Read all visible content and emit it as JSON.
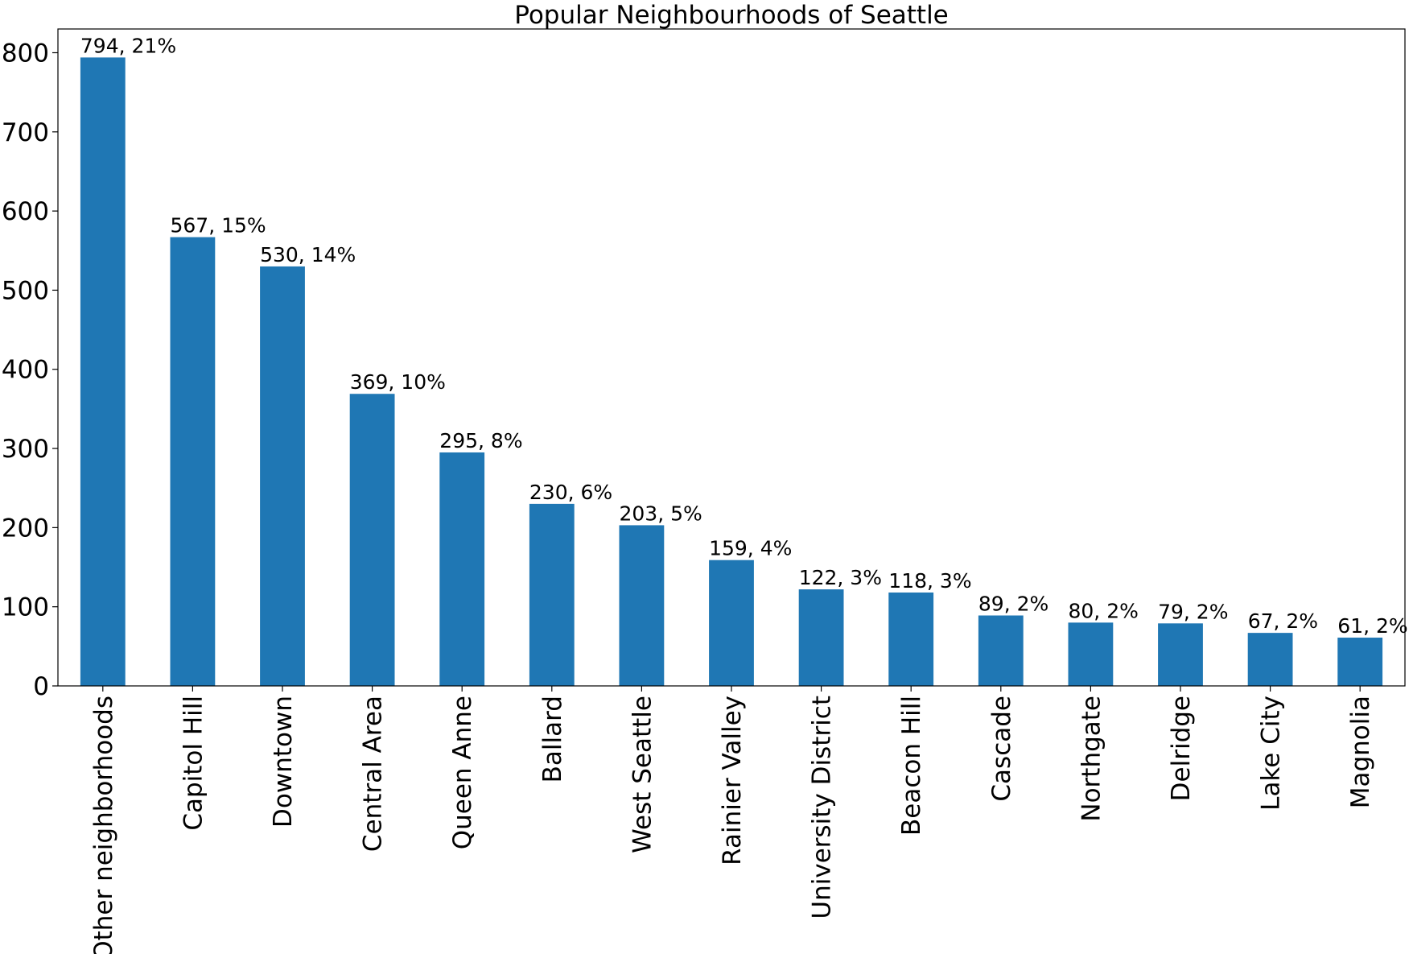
{
  "chart_data": {
    "type": "bar",
    "title": "Popular Neighbourhoods of Seattle",
    "xlabel": "",
    "ylabel": "",
    "ylim": [
      0,
      830
    ],
    "yticks": [
      0,
      100,
      200,
      300,
      400,
      500,
      600,
      700,
      800
    ],
    "grid": false,
    "bar_color": "#1f77b4",
    "categories": [
      "Other neighborhoods",
      "Capitol Hill",
      "Downtown",
      "Central Area",
      "Queen Anne",
      "Ballard",
      "West Seattle",
      "Rainier Valley",
      "University District",
      "Beacon Hill",
      "Cascade",
      "Northgate",
      "Delridge",
      "Lake City",
      "Magnolia"
    ],
    "values": [
      794,
      567,
      530,
      369,
      295,
      230,
      203,
      159,
      122,
      118,
      89,
      80,
      79,
      67,
      61
    ],
    "data_labels": [
      "794, 21%",
      "567, 15%",
      "530, 14%",
      "369, 10%",
      "295, 8%",
      "230, 6%",
      "203, 5%",
      "159, 4%",
      "122, 3%",
      "118, 3%",
      "89, 2%",
      "80, 2%",
      "79, 2%",
      "67, 2%",
      "61, 2%"
    ]
  }
}
